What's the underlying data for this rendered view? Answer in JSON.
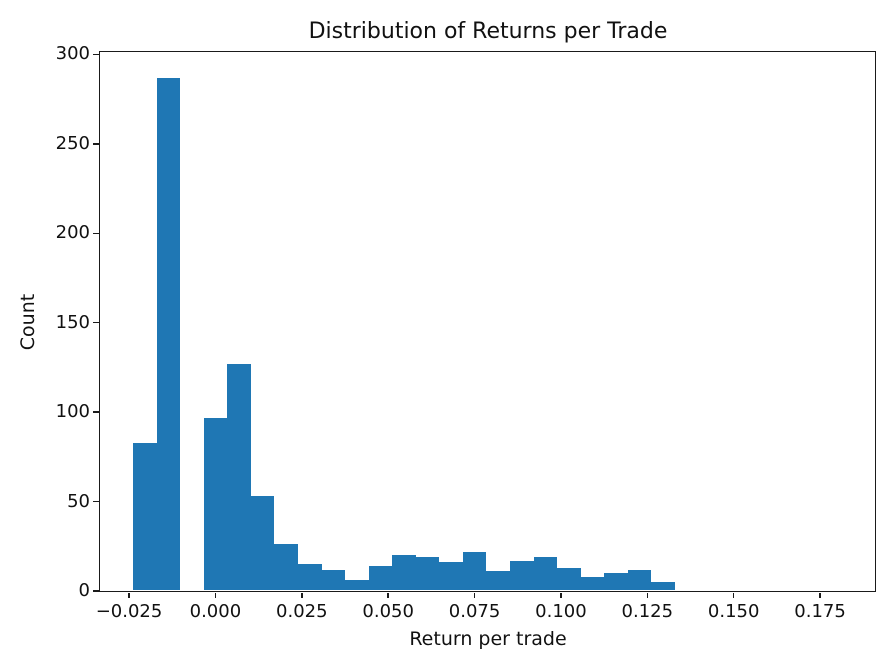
{
  "chart_data": {
    "type": "bar",
    "subtype": "histogram",
    "title": "Distribution of Returns per Trade",
    "xlabel": "Return per trade",
    "ylabel": "Count",
    "bar_color": "#1f77b4",
    "axis_color": "#1a1a1a",
    "text_color": "#111111",
    "grid": false,
    "legend": null,
    "bin_start": -0.0238,
    "bin_width": 0.006817,
    "counts": [
      83,
      287,
      0,
      97,
      127,
      53,
      26,
      15,
      12,
      6,
      14,
      20,
      19,
      16,
      22,
      11,
      17,
      19,
      13,
      8,
      10,
      12,
      5
    ],
    "bin_left_edges": [
      -0.0238,
      -0.017,
      -0.0102,
      -0.0034,
      0.0034,
      0.0102,
      0.017,
      0.0238,
      0.0307,
      0.0375,
      0.0443,
      0.0511,
      0.0579,
      0.0647,
      0.0716,
      0.0784,
      0.0852,
      0.092,
      0.0988,
      0.1056,
      0.1125,
      0.1193,
      0.1261
    ],
    "xlim": [
      -0.0334,
      0.1909
    ],
    "ylim": [
      0,
      301.35
    ],
    "x_ticks": [
      {
        "value": -0.025,
        "label": "−0.025"
      },
      {
        "value": 0.0,
        "label": "0.000"
      },
      {
        "value": 0.025,
        "label": "0.025"
      },
      {
        "value": 0.05,
        "label": "0.050"
      },
      {
        "value": 0.075,
        "label": "0.075"
      },
      {
        "value": 0.1,
        "label": "0.100"
      },
      {
        "value": 0.125,
        "label": "0.125"
      },
      {
        "value": 0.15,
        "label": "0.150"
      },
      {
        "value": 0.175,
        "label": "0.175"
      }
    ],
    "y_ticks": [
      {
        "value": 0,
        "label": "0"
      },
      {
        "value": 50,
        "label": "50"
      },
      {
        "value": 100,
        "label": "100"
      },
      {
        "value": 150,
        "label": "150"
      },
      {
        "value": 200,
        "label": "200"
      },
      {
        "value": 250,
        "label": "250"
      },
      {
        "value": 300,
        "label": "300"
      }
    ]
  }
}
